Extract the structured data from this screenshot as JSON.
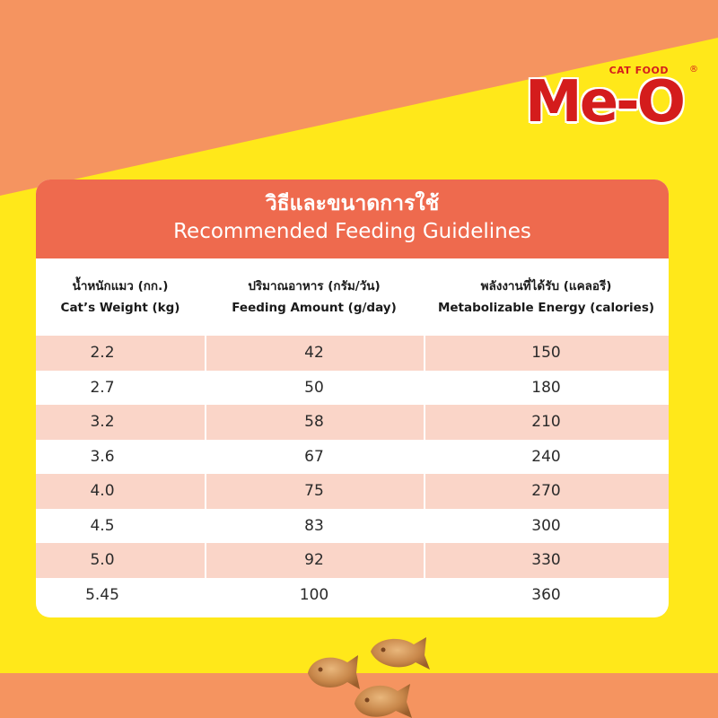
{
  "brand": {
    "tagline": "CAT FOOD",
    "name": "Me-O",
    "registered": "®"
  },
  "colors": {
    "background": "#ffe81a",
    "band": "#f59460",
    "header": "#ee6a4e",
    "row_shade": "#fad5c8",
    "logo_red": "#d41c1c"
  },
  "table": {
    "title_th": "วิธีและขนาดการใช้",
    "title_en": "Recommended Feeding Guidelines",
    "columns": [
      {
        "th": "น้ำหนักแมว (กก.)",
        "en": "Cat’s Weight (kg)"
      },
      {
        "th": "ปริมาณอาหาร (กรัม/วัน)",
        "en": "Feeding Amount (g/day)"
      },
      {
        "th": "พลังงานที่ได้รับ (แคลอรี)",
        "en": "Metabolizable Energy (calories)"
      }
    ],
    "rows": [
      {
        "weight": "2.2",
        "amount": "42",
        "energy": "150"
      },
      {
        "weight": "2.7",
        "amount": "50",
        "energy": "180"
      },
      {
        "weight": "3.2",
        "amount": "58",
        "energy": "210"
      },
      {
        "weight": "3.6",
        "amount": "67",
        "energy": "240"
      },
      {
        "weight": "4.0",
        "amount": "75",
        "energy": "270"
      },
      {
        "weight": "4.5",
        "amount": "83",
        "energy": "300"
      },
      {
        "weight": "5.0",
        "amount": "92",
        "energy": "330"
      },
      {
        "weight": "5.45",
        "amount": "100",
        "energy": "360"
      }
    ]
  }
}
